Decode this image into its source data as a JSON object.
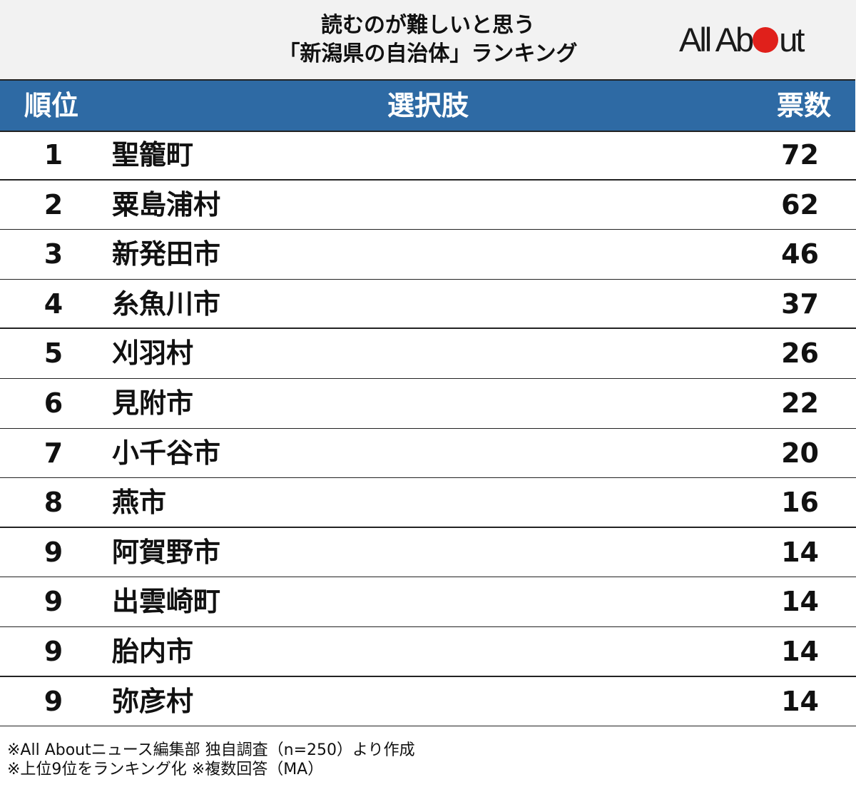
{
  "header": {
    "title_line1": "読むのが難しいと思う",
    "title_line2": "「新潟県の自治体」ランキング",
    "logo": {
      "before": "All Ab",
      "after": "ut",
      "dot_color": "#e0201b"
    }
  },
  "table": {
    "columns": {
      "rank": "順位",
      "name": "選択肢",
      "votes": "票数"
    },
    "header_color": "#2e6aa4",
    "rows": [
      {
        "rank": "1",
        "name": "聖籠町",
        "votes": "72"
      },
      {
        "rank": "2",
        "name": "粟島浦村",
        "votes": "62"
      },
      {
        "rank": "3",
        "name": "新発田市",
        "votes": "46"
      },
      {
        "rank": "4",
        "name": "糸魚川市",
        "votes": "37"
      },
      {
        "rank": "5",
        "name": "刈羽村",
        "votes": "26"
      },
      {
        "rank": "6",
        "name": "見附市",
        "votes": "22"
      },
      {
        "rank": "7",
        "name": "小千谷市",
        "votes": "20"
      },
      {
        "rank": "8",
        "name": "燕市",
        "votes": "16"
      },
      {
        "rank": "9",
        "name": "阿賀野市",
        "votes": "14"
      },
      {
        "rank": "9",
        "name": "出雲崎町",
        "votes": "14"
      },
      {
        "rank": "9",
        "name": "胎内市",
        "votes": "14"
      },
      {
        "rank": "9",
        "name": "弥彦村",
        "votes": "14"
      }
    ]
  },
  "footer": {
    "line1": "※All Aboutニュース編集部 独自調査（n=250）より作成",
    "line2": "※上位9位をランキング化 ※複数回答（MA）"
  },
  "chart_data": {
    "type": "table",
    "title": "読むのが難しいと思う「新潟県の自治体」ランキング",
    "columns": [
      "順位",
      "選択肢",
      "票数"
    ],
    "categories": [
      "聖籠町",
      "粟島浦村",
      "新発田市",
      "糸魚川市",
      "刈羽村",
      "見附市",
      "小千谷市",
      "燕市",
      "阿賀野市",
      "出雲崎町",
      "胎内市",
      "弥彦村"
    ],
    "ranks": [
      1,
      2,
      3,
      4,
      5,
      6,
      7,
      8,
      9,
      9,
      9,
      9
    ],
    "values": [
      72,
      62,
      46,
      37,
      26,
      22,
      20,
      16,
      14,
      14,
      14,
      14
    ],
    "notes": [
      "※All Aboutニュース編集部 独自調査（n=250）より作成",
      "※上位9位をランキング化 ※複数回答（MA）"
    ]
  }
}
